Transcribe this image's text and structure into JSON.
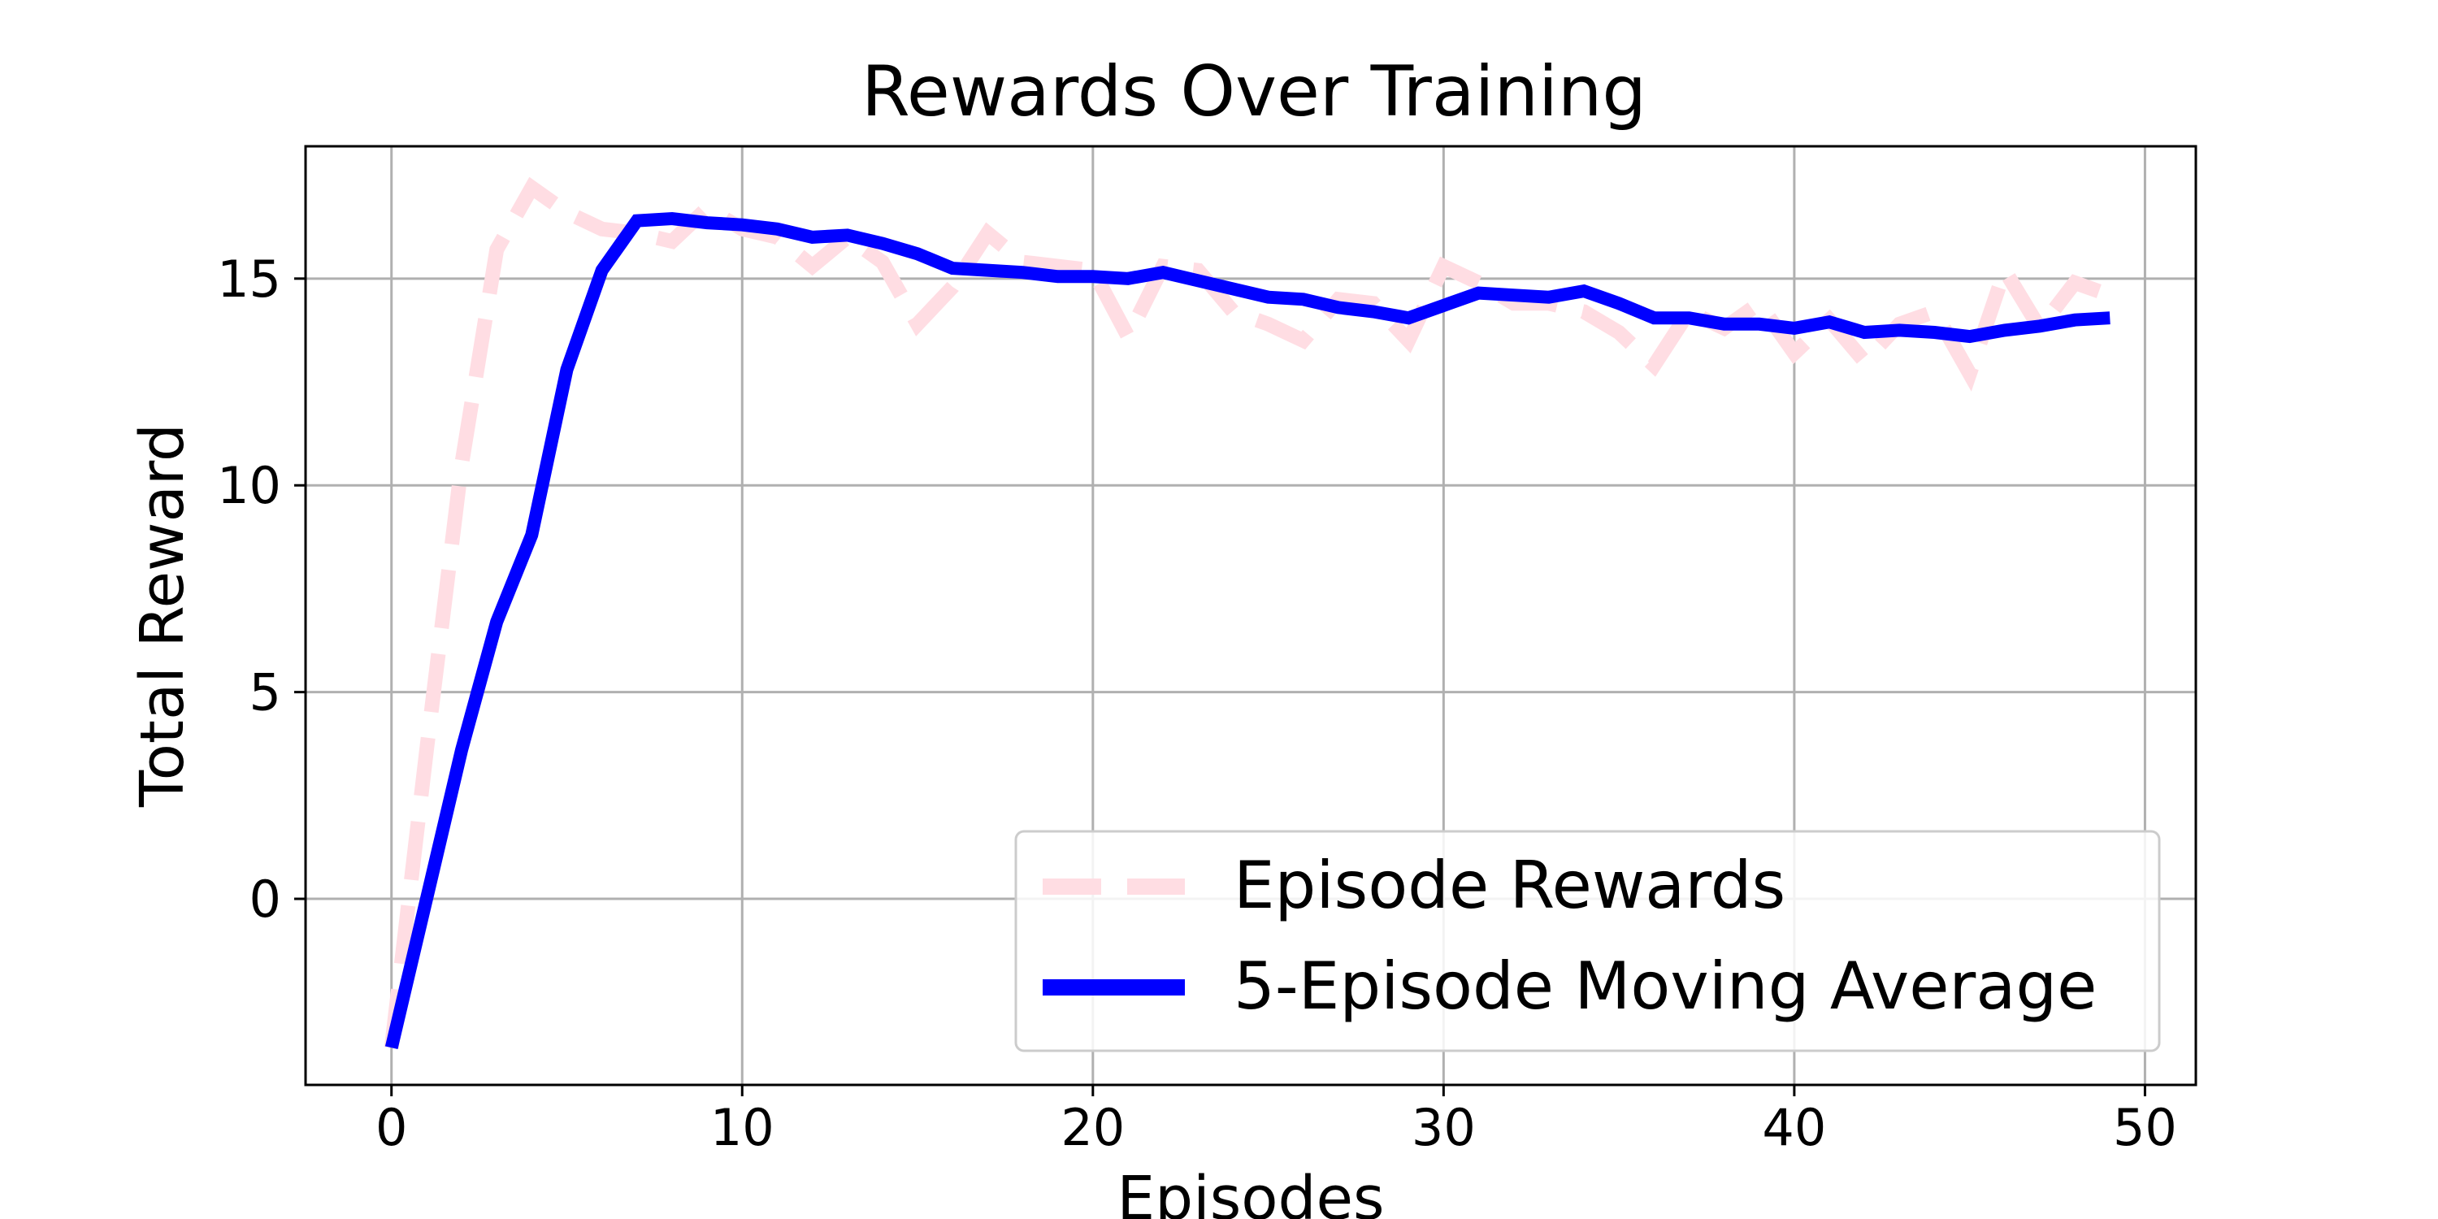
{
  "chart_data": {
    "type": "line",
    "title": "Rewards Over Training",
    "xlabel": "Episodes",
    "ylabel": "Total Reward",
    "xlim": [
      -2.45,
      51.45
    ],
    "ylim": [
      -4.5,
      18.2
    ],
    "xticks": [
      0,
      10,
      20,
      30,
      40,
      50
    ],
    "yticks": [
      0,
      5,
      10,
      15
    ],
    "grid": true,
    "legend_position": "lower-right",
    "x": [
      0,
      1,
      2,
      3,
      4,
      5,
      6,
      7,
      8,
      9,
      10,
      11,
      12,
      13,
      14,
      15,
      16,
      17,
      18,
      19,
      20,
      21,
      22,
      23,
      24,
      25,
      26,
      27,
      28,
      29,
      30,
      31,
      32,
      33,
      34,
      35,
      36,
      37,
      38,
      39,
      40,
      41,
      42,
      43,
      44,
      45,
      46,
      47,
      48,
      49
    ],
    "series": [
      {
        "name": "Episode Rewards",
        "color": "#ffdde3",
        "style": "dashed",
        "values": [
          -3.6,
          3.6,
          10.5,
          15.7,
          17.2,
          16.6,
          16.2,
          16.1,
          15.9,
          16.7,
          16.2,
          16.0,
          15.3,
          16.0,
          15.4,
          13.9,
          14.8,
          16.1,
          15.4,
          15.3,
          15.2,
          13.6,
          15.3,
          15.2,
          14.2,
          13.9,
          13.5,
          14.5,
          14.4,
          13.5,
          15.3,
          14.9,
          14.4,
          14.4,
          14.2,
          13.7,
          12.9,
          14.2,
          13.8,
          14.4,
          13.2,
          14.0,
          13.0,
          13.9,
          14.2,
          12.7,
          15.2,
          13.8,
          14.9,
          14.6
        ]
      },
      {
        "name": "5-Episode Moving Average",
        "color": "#0000ff",
        "style": "solid",
        "values": [
          -3.6,
          0.0,
          3.6,
          6.7,
          8.8,
          12.8,
          15.2,
          16.4,
          16.45,
          16.35,
          16.3,
          16.2,
          16.0,
          16.05,
          15.85,
          15.6,
          15.25,
          15.2,
          15.15,
          15.05,
          15.05,
          15.0,
          15.15,
          14.95,
          14.75,
          14.55,
          14.5,
          14.3,
          14.2,
          14.05,
          14.35,
          14.65,
          14.6,
          14.55,
          14.7,
          14.4,
          14.05,
          14.05,
          13.9,
          13.9,
          13.8,
          13.95,
          13.7,
          13.75,
          13.7,
          13.6,
          13.75,
          13.85,
          14.0,
          14.05
        ]
      }
    ]
  }
}
